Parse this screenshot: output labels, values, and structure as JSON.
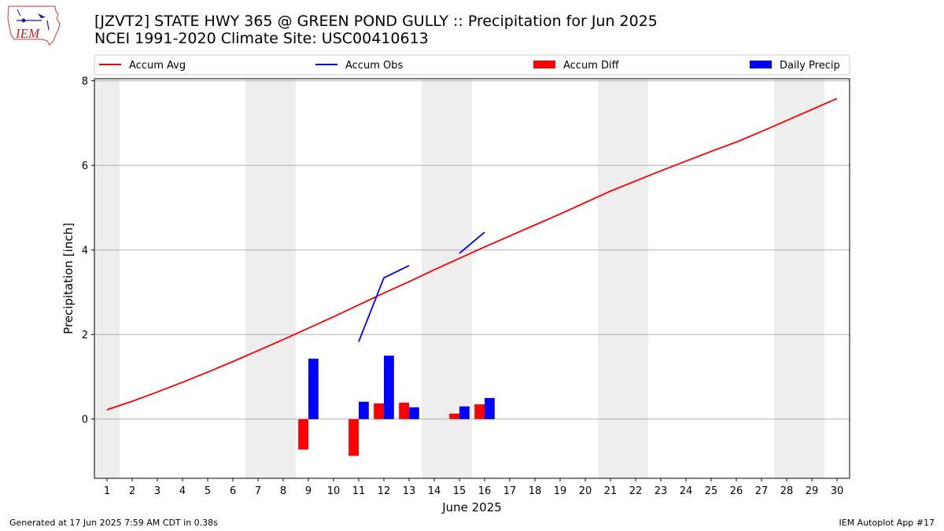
{
  "title_line1": "[JZVT2] STATE HWY 365 @ GREEN POND GULLY :: Precipitation for Jun 2025",
  "title_line2": "NCEI 1991-2020 Climate Site: USC00410613",
  "logo_text": "IEM",
  "footer_left": "Generated at 17 Jun 2025 7:59 AM CDT in 0.38s",
  "footer_right": "IEM Autoplot App #17",
  "colors": {
    "avg": "#ff0000",
    "obs": "#0000ff",
    "diff": "#ff0000",
    "daily": "#0000ff",
    "weekend": "#eeeeee",
    "grid": "#b0b0b0"
  },
  "chart_data": {
    "type": "bar",
    "xlabel": "June 2025",
    "ylabel": "Precipitation [inch]",
    "xlim": [
      0.5,
      30.5
    ],
    "ylim": [
      -1.4,
      8.05
    ],
    "yticks": [
      0,
      2,
      4,
      6,
      8
    ],
    "xticks": [
      1,
      2,
      3,
      4,
      5,
      6,
      7,
      8,
      9,
      10,
      11,
      12,
      13,
      14,
      15,
      16,
      17,
      18,
      19,
      20,
      21,
      22,
      23,
      24,
      25,
      26,
      27,
      28,
      29,
      30
    ],
    "grid": "horizontal",
    "legend_placement": "top",
    "legend": [
      "Accum Avg",
      "Accum Obs",
      "Accum Diff",
      "Daily Precip"
    ],
    "weekend_spans": [
      [
        0.5,
        1.5
      ],
      [
        6.5,
        8.5
      ],
      [
        13.5,
        15.5
      ],
      [
        20.5,
        22.5
      ],
      [
        27.5,
        29.5
      ]
    ],
    "accum_avg": {
      "x": [
        1,
        2,
        3,
        4,
        5,
        6,
        7,
        8,
        9,
        10,
        11,
        12,
        13,
        14,
        15,
        16,
        17,
        18,
        19,
        20,
        21,
        22,
        23,
        24,
        25,
        26,
        27,
        28,
        29,
        30
      ],
      "y": [
        0.22,
        0.42,
        0.64,
        0.87,
        1.11,
        1.36,
        1.62,
        1.88,
        2.15,
        2.42,
        2.7,
        2.98,
        3.25,
        3.53,
        3.8,
        4.07,
        4.33,
        4.59,
        4.85,
        5.12,
        5.39,
        5.63,
        5.87,
        6.1,
        6.33,
        6.55,
        6.8,
        7.06,
        7.32,
        7.58
      ]
    },
    "accum_obs": [
      {
        "x": [
          11,
          12,
          13
        ],
        "y": [
          1.83,
          3.34,
          3.63
        ]
      },
      {
        "x": [
          15,
          16
        ],
        "y": [
          3.92,
          4.42
        ]
      }
    ],
    "accum_diff": {
      "x": [
        9,
        11,
        12,
        13,
        15,
        16
      ],
      "y": [
        -0.72,
        -0.87,
        0.37,
        0.39,
        0.13,
        0.35
      ]
    },
    "daily_precip": {
      "x": [
        9,
        11,
        12,
        13,
        15,
        16
      ],
      "y": [
        1.43,
        0.41,
        1.5,
        0.28,
        0.3,
        0.5
      ]
    }
  }
}
